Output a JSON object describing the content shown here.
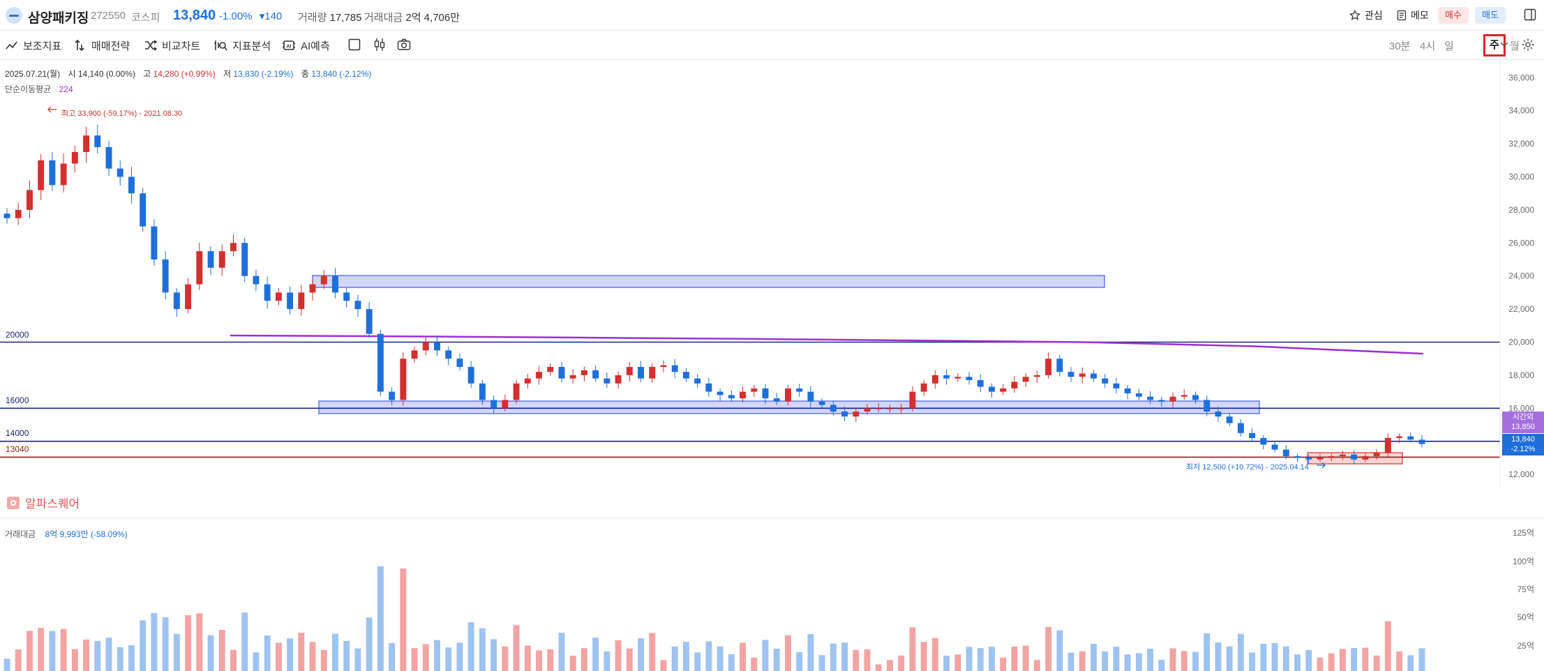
{
  "header": {
    "name": "삼양패키징",
    "code": "272550",
    "market": "코스피",
    "price": "13,840",
    "change_pct": "-1.00%",
    "change_abs": "▾140",
    "volume_label": "거래량",
    "volume": "17,785",
    "amount_label": "거래대금",
    "amount": "2억 4,706만",
    "watch": "관심",
    "memo": "메모",
    "buy": "매수",
    "sell": "매도"
  },
  "toolbar": {
    "indicator": "보조지표",
    "strategy": "매매전략",
    "compare": "비교차트",
    "analysis": "지표분석",
    "ai": "AI예측",
    "periods": [
      "30분",
      "4시",
      "일",
      "주",
      "월"
    ],
    "active_period": "주"
  },
  "info": {
    "date": "2025.07.21(월)",
    "open_label": "시",
    "open": "14,140 (0.00%)",
    "high_label": "고",
    "high": "14,280 (+0.99%)",
    "low_label": "저",
    "low": "13,830 (-2.19%)",
    "close_label": "종",
    "close": "13,840 (-2.12%)",
    "ma_label": "단순이동평균",
    "ma_value": "224"
  },
  "annotations": {
    "high": "최고 33,900 (-59.17%) - 2021.08.30",
    "low": "최저 12,500 (+10.72%) - 2025.04.14"
  },
  "levels": [
    {
      "label": "20000",
      "value": 20000,
      "color": "#1a237e"
    },
    {
      "label": "16000",
      "value": 16000,
      "color": "#1a237e"
    },
    {
      "label": "14000",
      "value": 14000,
      "color": "#1a237e"
    },
    {
      "label": "13040",
      "value": 13040,
      "color": "#8b1a1a"
    }
  ],
  "price_tags": {
    "time_label": "시간외",
    "time_value": "13,850",
    "last": "13,840",
    "last_pct": "-2.12%"
  },
  "alpha_square": "알파스퀘어",
  "volume_panel": {
    "label": "거래대금",
    "value": "8억 9,993만 (-58.09%)",
    "ticks": [
      "125억",
      "100억",
      "75억",
      "50억",
      "25억"
    ]
  },
  "colors": {
    "up": "#d2302f",
    "down": "#1e6fd9",
    "ma": "#9b30d0",
    "zone": "#5b6cf0"
  },
  "chart_data": {
    "type": "candlestick",
    "y_ticks": [
      36000,
      34000,
      32000,
      30000,
      28000,
      26000,
      24000,
      22000,
      20000,
      18000,
      16000,
      14000,
      12000,
      10000
    ],
    "ylim": [
      10000,
      36500
    ],
    "close": [
      27500,
      28000,
      29200,
      31000,
      29500,
      30800,
      31500,
      32500,
      31800,
      30500,
      30000,
      29000,
      27000,
      25000,
      23000,
      22000,
      23500,
      25500,
      24500,
      25500,
      26000,
      24000,
      23500,
      22500,
      23000,
      22000,
      23000,
      23500,
      24000,
      23000,
      22500,
      22000,
      20500,
      17000,
      16500,
      19000,
      19500,
      20000,
      19500,
      19000,
      18500,
      17500,
      16500,
      16000,
      16500,
      17500,
      17800,
      18200,
      18500,
      17800,
      18000,
      18300,
      17800,
      17500,
      18000,
      18500,
      17800,
      18500,
      18600,
      18200,
      17800,
      17500,
      17000,
      16800,
      16600,
      17000,
      17200,
      16600,
      16400,
      17200,
      17000,
      16400,
      16200,
      15800,
      15500,
      15800,
      16000,
      16000,
      16000,
      16000,
      17000,
      17500,
      18000,
      17800,
      17900,
      17700,
      17300,
      17000,
      17200,
      17600,
      17900,
      18000,
      19000,
      18200,
      17900,
      18100,
      17800,
      17500,
      17200,
      16900,
      16700,
      16500,
      16400,
      16700,
      16800,
      16500,
      15800,
      15500,
      15100,
      14500,
      14200,
      13800,
      13500,
      13100,
      13000,
      12900,
      13000,
      13100,
      13200,
      12900,
      13100,
      13300,
      14200,
      14300,
      14100,
      13840
    ],
    "ma": [
      20400,
      20350,
      20280,
      20200,
      20100,
      20000,
      19750,
      19300
    ]
  }
}
